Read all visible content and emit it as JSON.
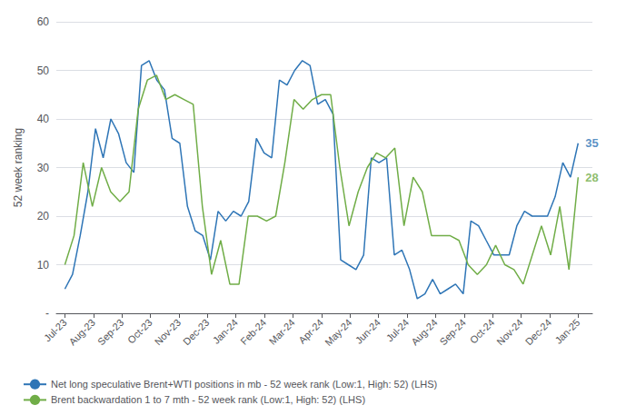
{
  "chart_data": {
    "type": "line",
    "title": "",
    "ylabel": "52 week ranking",
    "xlim": [
      -0.3,
      18.5
    ],
    "xticks": [
      {
        "value": 0,
        "label": "Jul-23"
      },
      {
        "value": 1,
        "label": "Aug-23"
      },
      {
        "value": 2,
        "label": "Sep-23"
      },
      {
        "value": 3,
        "label": "Oct-23"
      },
      {
        "value": 4,
        "label": "Nov-23"
      },
      {
        "value": 5,
        "label": "Dec-23"
      },
      {
        "value": 6,
        "label": "Jan-24"
      },
      {
        "value": 7,
        "label": "Feb-24"
      },
      {
        "value": 8,
        "label": "Mar-24"
      },
      {
        "value": 9,
        "label": "Apr-24"
      },
      {
        "value": 10,
        "label": "May-24"
      },
      {
        "value": 11,
        "label": "Jun-24"
      },
      {
        "value": 12,
        "label": "Jul-24"
      },
      {
        "value": 13,
        "label": "Aug-24"
      },
      {
        "value": 14,
        "label": "Sep-24"
      },
      {
        "value": 15,
        "label": "Oct-24"
      },
      {
        "value": 16,
        "label": "Nov-24"
      },
      {
        "value": 17,
        "label": "Dec-24"
      },
      {
        "value": 18,
        "label": "Jan-25"
      }
    ],
    "ylim": [
      0,
      60
    ],
    "yticks": [
      {
        "value": 0,
        "label": "-"
      },
      10,
      20,
      30,
      40,
      50,
      60
    ],
    "grid": true,
    "legend": "lower left",
    "series": [
      {
        "name": "Net long speculative Brent+WTI positions in mb - 52 week rank (Low:1, High: 52) (LHS)",
        "color": "#2E75B6",
        "x": [
          0,
          0.2687,
          0.5373,
          0.806,
          1.0746,
          1.3433,
          1.6119,
          1.8806,
          2.1493,
          2.4179,
          2.6866,
          2.9552,
          3.2239,
          3.4925,
          3.7612,
          4.0299,
          4.2985,
          4.5672,
          4.8358,
          5.1045,
          5.3731,
          5.6418,
          5.9104,
          6.1791,
          6.4478,
          6.7164,
          6.9851,
          7.2537,
          7.5224,
          7.791,
          8.0597,
          8.3284,
          8.597,
          8.8657,
          9.1343,
          9.403,
          9.6716,
          9.9403,
          10.209,
          10.4776,
          10.7463,
          11.0149,
          11.2836,
          11.5522,
          11.8209,
          12.0896,
          12.3582,
          12.6269,
          12.8955,
          13.1642,
          13.4328,
          13.7015,
          13.9701,
          14.2388,
          14.5075,
          14.7761,
          15.0448,
          15.3134,
          15.5821,
          15.8507,
          16.1194,
          16.3881,
          16.6567,
          16.9254,
          17.194,
          17.4627,
          17.7313,
          18
        ],
        "values": [
          5,
          8,
          16,
          25,
          38,
          32,
          40,
          37,
          31,
          29,
          51,
          52,
          48,
          46,
          36,
          35,
          22,
          17,
          16,
          11,
          21,
          19,
          21,
          20,
          23,
          36,
          33,
          32,
          48,
          47,
          50,
          52,
          51,
          43,
          44,
          41,
          11,
          10,
          9,
          12,
          32,
          31,
          32,
          12,
          13,
          9,
          3,
          4,
          7,
          4,
          5,
          6,
          4,
          19,
          18,
          15,
          12,
          12,
          12,
          18,
          21,
          20,
          20,
          20,
          24,
          31,
          28,
          35
        ]
      },
      {
        "name": "Brent backwardation 1 to 7 mth - 52 week rank (Low:1, High: 52) (LHS)",
        "color": "#70AD47",
        "x": [
          0,
          0.3214,
          0.6429,
          0.9643,
          1.2857,
          1.6071,
          1.9286,
          2.25,
          2.5714,
          2.8929,
          3.2143,
          3.5357,
          3.8571,
          4.1786,
          4.5,
          4.8214,
          5.1429,
          5.4643,
          5.7857,
          6.1071,
          6.4286,
          6.75,
          7.0714,
          7.3929,
          7.7143,
          8.0357,
          8.3571,
          8.6786,
          9,
          9.3214,
          9.6429,
          9.9643,
          10.2857,
          10.6071,
          10.9286,
          11.25,
          11.5714,
          11.8929,
          12.2143,
          12.5357,
          12.8571,
          13.1786,
          13.5,
          13.8214,
          14.1429,
          14.4643,
          14.7857,
          15.1071,
          15.4286,
          15.75,
          16.0714,
          16.3929,
          16.7143,
          17.0357,
          17.3571,
          17.6786,
          18
        ],
        "values": [
          10,
          16,
          31,
          22,
          30,
          25,
          23,
          25,
          42,
          48,
          49,
          44,
          45,
          44,
          43,
          22,
          8,
          15,
          6,
          6,
          20,
          20,
          19,
          20,
          31,
          44,
          42,
          44,
          45,
          45,
          30,
          18,
          25,
          30,
          33,
          32,
          34,
          18,
          28,
          25,
          16,
          16,
          16,
          15,
          10,
          8,
          10,
          14,
          10,
          9,
          6,
          12,
          18,
          12,
          22,
          9,
          28
        ]
      }
    ],
    "annotations": [
      {
        "text": "35",
        "x": 18,
        "y": 35,
        "color": "#2E75B6"
      },
      {
        "text": "28",
        "x": 18,
        "y": 28,
        "color": "#70AD47"
      }
    ]
  }
}
